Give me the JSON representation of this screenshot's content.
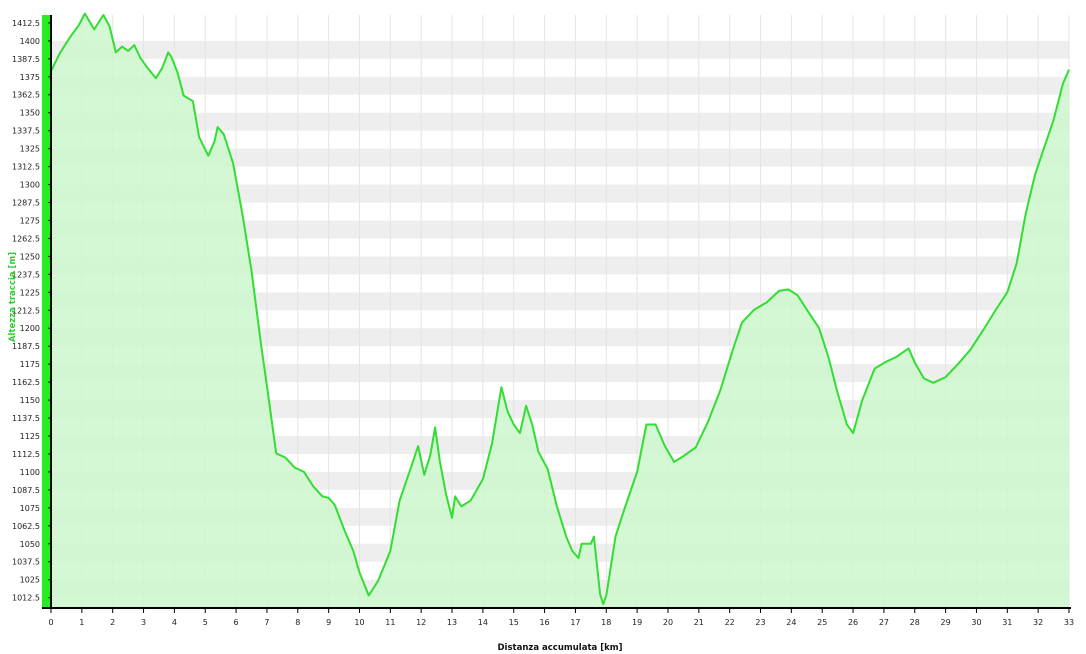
{
  "chart_data": {
    "type": "area",
    "xlabel": "Distanza accumulata [km]",
    "ylabel": "Altezza traccia [m]",
    "xlim": [
      0,
      33
    ],
    "ylim": [
      1006,
      1418
    ],
    "x_ticks": [
      0,
      1,
      2,
      3,
      4,
      5,
      6,
      7,
      8,
      9,
      10,
      11,
      12,
      13,
      14,
      15,
      16,
      17,
      18,
      19,
      20,
      21,
      22,
      23,
      24,
      25,
      26,
      27,
      28,
      29,
      30,
      31,
      32,
      33
    ],
    "y_ticks": [
      1012.5,
      1025,
      1037.5,
      1050,
      1062.5,
      1075,
      1087.5,
      1100,
      1112.5,
      1125,
      1137.5,
      1150,
      1162.5,
      1175,
      1187.5,
      1200,
      1212.5,
      1225,
      1237.5,
      1250,
      1262.5,
      1275,
      1287.5,
      1300,
      1312.5,
      1325,
      1337.5,
      1350,
      1362.5,
      1375,
      1387.5,
      1400,
      1412.5
    ],
    "grid": true,
    "colors": {
      "line": "#33dd33",
      "fill": "#ccf7cc",
      "band": "#eeeeee",
      "axis_bar": "#22ee22"
    },
    "series": [
      {
        "points": [
          [
            0,
            1379
          ],
          [
            0.3,
            1392
          ],
          [
            0.6,
            1402
          ],
          [
            0.9,
            1411
          ],
          [
            1.1,
            1419
          ],
          [
            1.4,
            1408
          ],
          [
            1.7,
            1418
          ],
          [
            1.9,
            1410
          ],
          [
            2.1,
            1392
          ],
          [
            2.3,
            1396
          ],
          [
            2.5,
            1393
          ],
          [
            2.7,
            1397
          ],
          [
            2.9,
            1388
          ],
          [
            3.1,
            1382
          ],
          [
            3.4,
            1374
          ],
          [
            3.6,
            1381
          ],
          [
            3.8,
            1392
          ],
          [
            3.9,
            1389
          ],
          [
            4.1,
            1378
          ],
          [
            4.3,
            1362
          ],
          [
            4.6,
            1358
          ],
          [
            4.8,
            1333
          ],
          [
            5.1,
            1320
          ],
          [
            5.3,
            1330
          ],
          [
            5.4,
            1340
          ],
          [
            5.6,
            1335
          ],
          [
            5.9,
            1315
          ],
          [
            6.2,
            1280
          ],
          [
            6.5,
            1240
          ],
          [
            6.8,
            1190
          ],
          [
            7.0,
            1160
          ],
          [
            7.3,
            1113
          ],
          [
            7.6,
            1110
          ],
          [
            7.9,
            1103
          ],
          [
            8.2,
            1100
          ],
          [
            8.5,
            1090
          ],
          [
            8.8,
            1083
          ],
          [
            9.0,
            1082
          ],
          [
            9.2,
            1077
          ],
          [
            9.5,
            1060
          ],
          [
            9.8,
            1045
          ],
          [
            10.0,
            1030
          ],
          [
            10.3,
            1014
          ],
          [
            10.6,
            1024
          ],
          [
            11.0,
            1045
          ],
          [
            11.3,
            1080
          ],
          [
            11.7,
            1105
          ],
          [
            11.9,
            1118
          ],
          [
            12.1,
            1098
          ],
          [
            12.3,
            1112
          ],
          [
            12.45,
            1131
          ],
          [
            12.6,
            1108
          ],
          [
            12.8,
            1085
          ],
          [
            13.0,
            1068
          ],
          [
            13.1,
            1083
          ],
          [
            13.3,
            1076
          ],
          [
            13.6,
            1080
          ],
          [
            14.0,
            1095
          ],
          [
            14.3,
            1120
          ],
          [
            14.6,
            1159
          ],
          [
            14.8,
            1142
          ],
          [
            15.0,
            1133
          ],
          [
            15.2,
            1127
          ],
          [
            15.4,
            1146
          ],
          [
            15.6,
            1133
          ],
          [
            15.8,
            1114
          ],
          [
            16.1,
            1102
          ],
          [
            16.4,
            1076
          ],
          [
            16.7,
            1055
          ],
          [
            16.9,
            1045
          ],
          [
            17.1,
            1040
          ],
          [
            17.2,
            1050
          ],
          [
            17.5,
            1050
          ],
          [
            17.6,
            1055
          ],
          [
            17.8,
            1015
          ],
          [
            17.9,
            1008
          ],
          [
            18.0,
            1014
          ],
          [
            18.3,
            1055
          ],
          [
            18.6,
            1075
          ],
          [
            19.0,
            1100
          ],
          [
            19.3,
            1133
          ],
          [
            19.6,
            1133
          ],
          [
            19.9,
            1118
          ],
          [
            20.2,
            1107
          ],
          [
            20.5,
            1111
          ],
          [
            20.9,
            1117
          ],
          [
            21.3,
            1135
          ],
          [
            21.7,
            1157
          ],
          [
            22.1,
            1185
          ],
          [
            22.4,
            1204
          ],
          [
            22.8,
            1213
          ],
          [
            23.2,
            1218
          ],
          [
            23.6,
            1226
          ],
          [
            23.9,
            1227
          ],
          [
            24.2,
            1223
          ],
          [
            24.5,
            1213
          ],
          [
            24.9,
            1200
          ],
          [
            25.2,
            1180
          ],
          [
            25.5,
            1155
          ],
          [
            25.8,
            1133
          ],
          [
            26.0,
            1127
          ],
          [
            26.3,
            1150
          ],
          [
            26.7,
            1172
          ],
          [
            27.1,
            1177
          ],
          [
            27.4,
            1180
          ],
          [
            27.8,
            1186
          ],
          [
            28.0,
            1176
          ],
          [
            28.3,
            1165
          ],
          [
            28.6,
            1162
          ],
          [
            29.0,
            1166
          ],
          [
            29.4,
            1175
          ],
          [
            29.8,
            1185
          ],
          [
            30.2,
            1198
          ],
          [
            30.6,
            1212
          ],
          [
            31.0,
            1225
          ],
          [
            31.3,
            1245
          ],
          [
            31.6,
            1280
          ],
          [
            31.9,
            1307
          ],
          [
            32.2,
            1326
          ],
          [
            32.5,
            1345
          ],
          [
            32.8,
            1370
          ],
          [
            33.0,
            1380
          ]
        ]
      }
    ]
  }
}
